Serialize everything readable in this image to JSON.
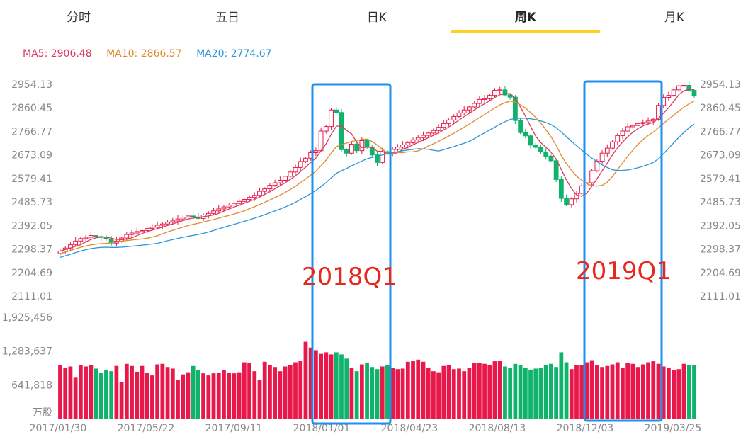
{
  "tabs": [
    {
      "label": "分时",
      "active": false
    },
    {
      "label": "五日",
      "active": false
    },
    {
      "label": "日K",
      "active": false
    },
    {
      "label": "周K",
      "active": true
    },
    {
      "label": "月K",
      "active": false
    }
  ],
  "legend": {
    "ma5": "MA5: 2906.48",
    "ma10": "MA10: 2866.57",
    "ma20": "MA20: 2774.67"
  },
  "colors": {
    "up": "#e8194a",
    "down": "#0fb36b",
    "ma5": "#d93a5a",
    "ma10": "#e08a2e",
    "ma20": "#2e96d6",
    "highlight": "#1e90ee",
    "annotation": "#e8281e",
    "active_tab": "#ffd21f"
  },
  "annotations": [
    {
      "text": "2018Q1",
      "from": "2018/01/01",
      "to": "2018/04/23"
    },
    {
      "text": "2019Q1",
      "from": "2018/12/03",
      "to": "2019/03/25"
    }
  ],
  "chart_data": {
    "type": "candlestick",
    "price_axis": {
      "ticks": [
        "2954.13",
        "2860.45",
        "2766.77",
        "2673.09",
        "2579.41",
        "2485.73",
        "2392.05",
        "2298.37",
        "2204.69",
        "2111.01"
      ],
      "range": [
        2111.01,
        2954.13
      ]
    },
    "volume_axis": {
      "ticks": [
        "1,925,456",
        "1,283,637",
        "641,818"
      ],
      "unit": "万股",
      "range": [
        0,
        1925456
      ]
    },
    "x_labels": [
      "2017/01/30",
      "2017/05/22",
      "2017/09/11",
      "2018/01/01",
      "2018/04/23",
      "2018/08/13",
      "2018/12/03",
      "2019/03/25"
    ],
    "close": [
      2290,
      2302,
      2315,
      2330,
      2340,
      2345,
      2352,
      2348,
      2345,
      2338,
      2322,
      2330,
      2342,
      2356,
      2362,
      2368,
      2372,
      2380,
      2385,
      2393,
      2398,
      2405,
      2410,
      2418,
      2425,
      2430,
      2426,
      2420,
      2434,
      2440,
      2450,
      2458,
      2466,
      2473,
      2480,
      2488,
      2496,
      2504,
      2512,
      2528,
      2538,
      2552,
      2562,
      2572,
      2588,
      2605,
      2623,
      2647,
      2660,
      2682,
      2690,
      2768,
      2786,
      2852,
      2842,
      2694,
      2680,
      2716,
      2690,
      2730,
      2704,
      2673,
      2643,
      2686,
      2682,
      2695,
      2704,
      2713,
      2722,
      2733,
      2742,
      2751,
      2760,
      2770,
      2783,
      2798,
      2812,
      2826,
      2840,
      2852,
      2864,
      2878,
      2894,
      2897,
      2910,
      2930,
      2932,
      2912,
      2903,
      2810,
      2762,
      2749,
      2712,
      2703,
      2685,
      2668,
      2650,
      2575,
      2500,
      2475,
      2498,
      2520,
      2550,
      2562,
      2610,
      2648,
      2680,
      2700,
      2725,
      2750,
      2768,
      2785,
      2790,
      2798,
      2802,
      2808,
      2815,
      2870,
      2902,
      2910,
      2932,
      2948,
      2950,
      2930,
      2908
    ],
    "volume": [
      1010000,
      970000,
      990000,
      790000,
      1010000,
      990000,
      1010000,
      950000,
      870000,
      930000,
      900000,
      1000000,
      690000,
      1040000,
      1000000,
      890000,
      1000000,
      870000,
      820000,
      1030000,
      1040000,
      980000,
      950000,
      730000,
      840000,
      880000,
      1000000,
      920000,
      860000,
      820000,
      860000,
      870000,
      920000,
      870000,
      860000,
      880000,
      1070000,
      1050000,
      900000,
      730000,
      1080000,
      1010000,
      980000,
      900000,
      990000,
      1010000,
      1070000,
      1100000,
      1460000,
      1350000,
      1300000,
      1230000,
      1260000,
      1220000,
      1260000,
      1220000,
      1140000,
      960000,
      900000,
      1030000,
      1050000,
      980000,
      940000,
      990000,
      1020000,
      970000,
      940000,
      950000,
      1080000,
      1090000,
      1120000,
      1080000,
      970000,
      900000,
      880000,
      1000000,
      1010000,
      940000,
      950000,
      900000,
      960000,
      1050000,
      1060000,
      1040000,
      1020000,
      1090000,
      1100000,
      990000,
      960000,
      1040000,
      1010000,
      970000,
      930000,
      950000,
      960000,
      1010000,
      1040000,
      980000,
      1260000,
      1070000,
      940000,
      1020000,
      1020000,
      1070000,
      1110000,
      1020000,
      980000,
      1000000,
      1030000,
      1070000,
      970000,
      1060000,
      1040000,
      980000,
      1030000,
      1070000,
      1090000,
      1040000,
      990000,
      970000,
      920000,
      940000,
      1040000,
      1010000,
      1010000
    ]
  }
}
